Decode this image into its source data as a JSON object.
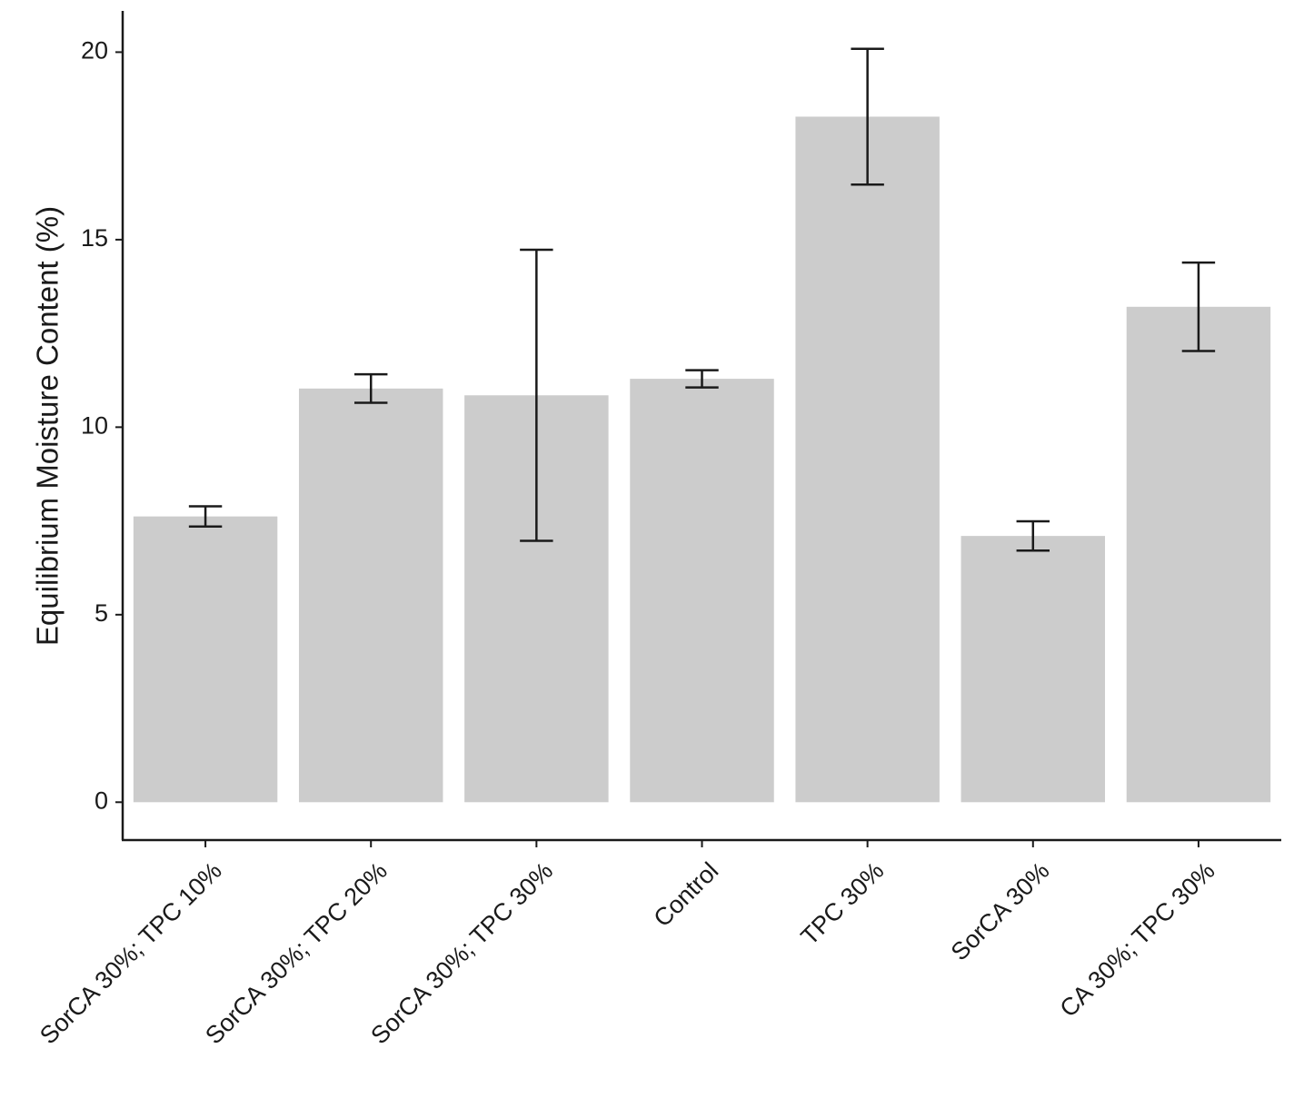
{
  "chart_data": {
    "type": "bar",
    "y_label": "Equilibrium Moisture Content (%)",
    "categories": [
      "SorCA 30%; TPC 10%",
      "SorCA 30%; TPC 20%",
      "SorCA 30%; TPC 30%",
      "Control",
      "TPC 30%",
      "SorCA 30%",
      "CA 30%; TPC 30%"
    ],
    "values": [
      7.62,
      11.03,
      10.85,
      11.29,
      18.28,
      7.1,
      13.21
    ],
    "errors": [
      0.27,
      0.38,
      3.88,
      0.23,
      1.81,
      0.39,
      1.18
    ],
    "color": "#cccccc",
    "error_color": "#1a1a1a",
    "ylim": [
      -1.01,
      21.1
    ],
    "yticks": [
      0,
      5,
      10,
      15,
      20
    ],
    "grid": false
  }
}
